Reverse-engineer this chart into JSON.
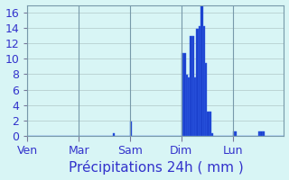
{
  "title": "",
  "xlabel": "Précipitations 24h ( mm )",
  "ylabel": "",
  "background_color": "#d8f5f5",
  "bar_color": "#1a3fcc",
  "bar_edge_color": "#3a6af0",
  "text_color": "#3333cc",
  "grid_color": "#b0c8c8",
  "ylim": [
    0,
    17
  ],
  "yticks": [
    0,
    2,
    4,
    6,
    8,
    10,
    12,
    14,
    16
  ],
  "day_labels": [
    "Ven",
    "Mar",
    "Sam",
    "Dim",
    "Lun"
  ],
  "day_positions": [
    0,
    24,
    48,
    72,
    96
  ],
  "num_bars": 120,
  "bar_values": [
    0,
    0,
    0,
    0,
    0,
    0,
    0,
    0,
    0,
    0,
    0,
    0,
    0,
    0,
    0,
    0,
    0,
    0,
    0,
    0,
    0,
    0,
    0,
    0,
    0,
    0,
    0,
    0,
    0,
    0,
    0,
    0,
    0,
    0,
    0,
    0,
    0,
    0,
    0,
    0,
    0.3,
    0,
    0,
    0,
    0,
    0,
    0,
    0,
    1.8,
    0,
    0,
    0,
    0,
    0,
    0,
    0,
    0,
    0,
    0,
    0,
    0,
    0,
    0,
    0,
    0,
    0,
    0,
    0,
    0,
    0,
    0,
    0,
    10.8,
    10.8,
    7.9,
    7.6,
    13.0,
    13.0,
    7.6,
    13.9,
    14.2,
    17.0,
    14.2,
    9.5,
    3.2,
    3.2,
    0.3,
    0,
    0,
    0,
    0,
    0,
    0,
    0,
    0,
    0,
    0.6,
    0.6,
    0,
    0,
    0,
    0,
    0,
    0,
    0,
    0,
    0,
    0,
    0.6,
    0.6,
    0.6,
    0,
    0,
    0,
    0,
    0,
    0,
    0,
    0,
    0
  ],
  "xlabel_fontsize": 11,
  "tick_fontsize": 9
}
